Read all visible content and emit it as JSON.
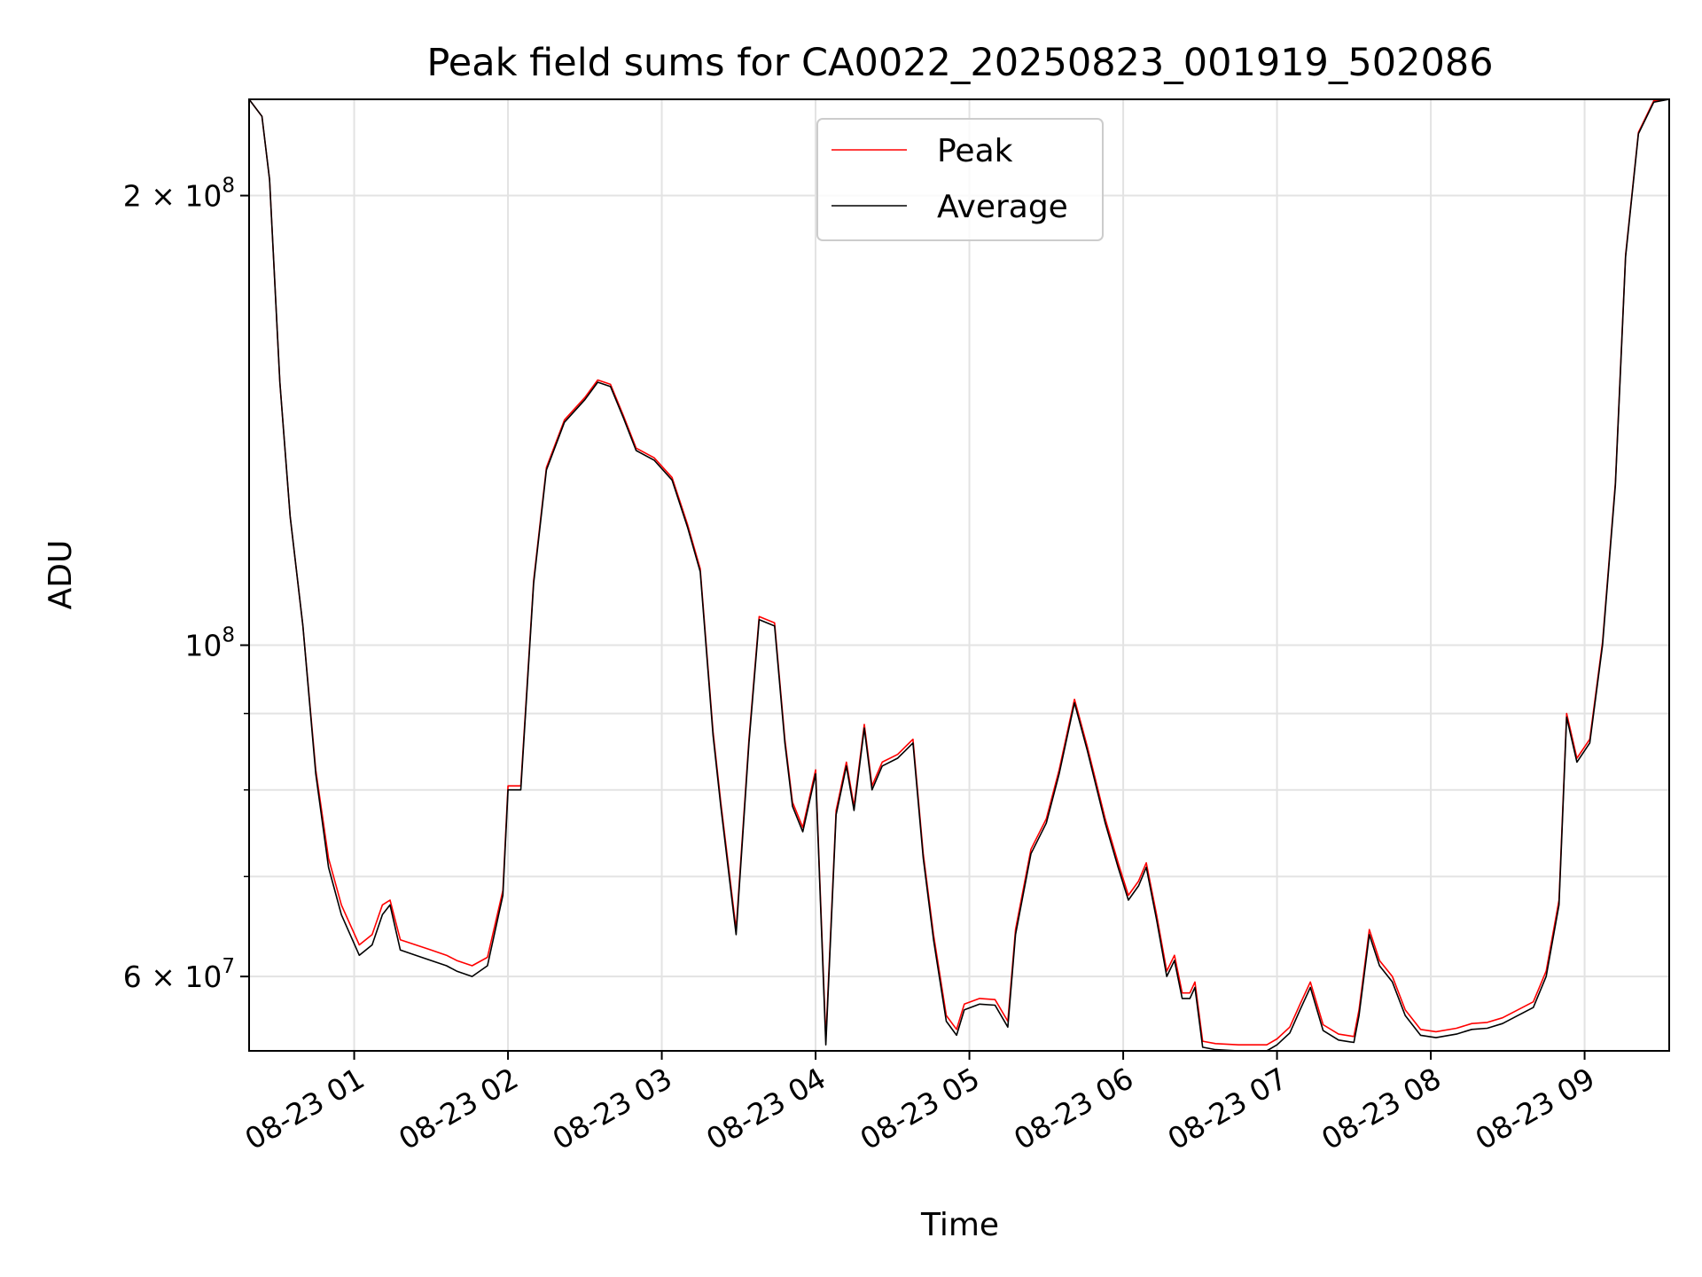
{
  "chart_data": {
    "type": "line",
    "title": "Peak field sums for CA0022_20250823_001919_502086",
    "xlabel": "Time",
    "ylabel": "ADU",
    "y_scale": "log",
    "xlim": [
      "2025-08-23 00:19",
      "2025-08-23 09:33"
    ],
    "ylim": [
      53500000,
      232000000
    ],
    "grid": true,
    "legend_position": "upper center",
    "x_ticks": [
      {
        "value": "2025-08-23 01:00",
        "label": "08-23 01"
      },
      {
        "value": "2025-08-23 02:00",
        "label": "08-23 02"
      },
      {
        "value": "2025-08-23 03:00",
        "label": "08-23 03"
      },
      {
        "value": "2025-08-23 04:00",
        "label": "08-23 04"
      },
      {
        "value": "2025-08-23 05:00",
        "label": "08-23 05"
      },
      {
        "value": "2025-08-23 06:00",
        "label": "08-23 06"
      },
      {
        "value": "2025-08-23 07:00",
        "label": "08-23 07"
      },
      {
        "value": "2025-08-23 08:00",
        "label": "08-23 08"
      },
      {
        "value": "2025-08-23 09:00",
        "label": "08-23 09"
      }
    ],
    "y_major_ticks": [
      {
        "value": 60000000,
        "base": "6 × 10",
        "exp": "7"
      },
      {
        "value": 100000000,
        "base": "10",
        "exp": "8"
      },
      {
        "value": 200000000,
        "base": "2 × 10",
        "exp": "8"
      }
    ],
    "y_minor_ticks": [
      70000000,
      80000000,
      90000000
    ],
    "series": [
      {
        "name": "Average",
        "color": "#000000",
        "x": [
          "2025-08-23 00:19",
          "2025-08-23 00:24",
          "2025-08-23 00:27",
          "2025-08-23 00:31",
          "2025-08-23 00:35",
          "2025-08-23 00:40",
          "2025-08-23 00:45",
          "2025-08-23 00:50",
          "2025-08-23 00:55",
          "2025-08-23 01:02",
          "2025-08-23 01:07",
          "2025-08-23 01:11",
          "2025-08-23 01:14",
          "2025-08-23 01:18",
          "2025-08-23 01:24",
          "2025-08-23 01:30",
          "2025-08-23 01:36",
          "2025-08-23 01:40",
          "2025-08-23 01:46",
          "2025-08-23 01:52",
          "2025-08-23 01:58",
          "2025-08-23 02:00",
          "2025-08-23 02:05",
          "2025-08-23 02:10",
          "2025-08-23 02:15",
          "2025-08-23 02:22",
          "2025-08-23 02:30",
          "2025-08-23 02:35",
          "2025-08-23 02:40",
          "2025-08-23 02:45",
          "2025-08-23 02:50",
          "2025-08-23 02:57",
          "2025-08-23 03:04",
          "2025-08-23 03:10",
          "2025-08-23 03:15",
          "2025-08-23 03:20",
          "2025-08-23 03:23",
          "2025-08-23 03:29",
          "2025-08-23 03:34",
          "2025-08-23 03:38",
          "2025-08-23 03:44",
          "2025-08-23 03:48",
          "2025-08-23 03:51",
          "2025-08-23 03:55",
          "2025-08-23 04:00",
          "2025-08-23 04:04",
          "2025-08-23 04:08",
          "2025-08-23 04:12",
          "2025-08-23 04:15",
          "2025-08-23 04:19",
          "2025-08-23 04:22",
          "2025-08-23 04:26",
          "2025-08-23 04:32",
          "2025-08-23 04:35",
          "2025-08-23 04:38",
          "2025-08-23 04:42",
          "2025-08-23 04:46",
          "2025-08-23 04:51",
          "2025-08-23 04:55",
          "2025-08-23 04:58",
          "2025-08-23 05:04",
          "2025-08-23 05:10",
          "2025-08-23 05:15",
          "2025-08-23 05:18",
          "2025-08-23 05:24",
          "2025-08-23 05:30",
          "2025-08-23 05:35",
          "2025-08-23 05:41",
          "2025-08-23 05:46",
          "2025-08-23 05:53",
          "2025-08-23 05:58",
          "2025-08-23 06:02",
          "2025-08-23 06:06",
          "2025-08-23 06:09",
          "2025-08-23 06:13",
          "2025-08-23 06:17",
          "2025-08-23 06:20",
          "2025-08-23 06:23",
          "2025-08-23 06:26",
          "2025-08-23 06:28",
          "2025-08-23 06:31",
          "2025-08-23 06:36",
          "2025-08-23 06:45",
          "2025-08-23 06:52",
          "2025-08-23 06:56",
          "2025-08-23 07:00",
          "2025-08-23 07:05",
          "2025-08-23 07:09",
          "2025-08-23 07:13",
          "2025-08-23 07:18",
          "2025-08-23 07:24",
          "2025-08-23 07:30",
          "2025-08-23 07:32",
          "2025-08-23 07:36",
          "2025-08-23 07:40",
          "2025-08-23 07:45",
          "2025-08-23 07:50",
          "2025-08-23 07:56",
          "2025-08-23 08:02",
          "2025-08-23 08:10",
          "2025-08-23 08:16",
          "2025-08-23 08:22",
          "2025-08-23 08:28",
          "2025-08-23 08:34",
          "2025-08-23 08:40",
          "2025-08-23 08:45",
          "2025-08-23 08:50",
          "2025-08-23 08:53",
          "2025-08-23 08:57",
          "2025-08-23 09:02",
          "2025-08-23 09:07",
          "2025-08-23 09:12",
          "2025-08-23 09:16",
          "2025-08-23 09:21",
          "2025-08-23 09:27",
          "2025-08-23 09:33"
        ],
        "values": [
          232000000,
          226000000,
          205000000,
          150000000,
          122000000,
          103000000,
          82000000,
          71000000,
          66000000,
          62000000,
          63000000,
          66000000,
          67000000,
          62500000,
          62000000,
          61500000,
          61000000,
          60500000,
          60000000,
          61000000,
          68000000,
          80000000,
          80000000,
          110000000,
          131000000,
          141000000,
          146000000,
          150000000,
          149000000,
          142000000,
          135000000,
          133000000,
          129000000,
          120000000,
          112000000,
          87000000,
          78000000,
          64000000,
          86000000,
          104000000,
          103000000,
          86000000,
          78000000,
          75000000,
          82000000,
          54000000,
          77000000,
          83000000,
          77500000,
          88000000,
          80000000,
          83000000,
          84000000,
          85000000,
          86000000,
          72000000,
          63500000,
          56000000,
          54800000,
          57000000,
          57500000,
          57400000,
          55500000,
          64000000,
          72500000,
          76000000,
          82000000,
          91500000,
          85000000,
          76000000,
          71000000,
          67500000,
          69000000,
          71000000,
          65500000,
          60000000,
          61500000,
          58000000,
          58000000,
          59000000,
          53800000,
          53600000,
          53500000,
          53500000,
          53500000,
          54000000,
          55000000,
          57000000,
          59000000,
          55200000,
          54400000,
          54200000,
          56500000,
          64000000,
          61000000,
          59500000,
          56500000,
          54800000,
          54600000,
          54900000,
          55300000,
          55400000,
          55800000,
          56500000,
          57200000,
          60000000,
          67000000,
          89500000,
          83500000,
          86000000,
          100000000,
          128000000,
          182000000,
          220000000,
          231000000,
          232000000
        ]
      },
      {
        "name": "Peak",
        "color": "#ff0000",
        "x": [
          "2025-08-23 00:19",
          "2025-08-23 00:24",
          "2025-08-23 00:27",
          "2025-08-23 00:31",
          "2025-08-23 00:35",
          "2025-08-23 00:40",
          "2025-08-23 00:45",
          "2025-08-23 00:50",
          "2025-08-23 00:55",
          "2025-08-23 01:02",
          "2025-08-23 01:07",
          "2025-08-23 01:11",
          "2025-08-23 01:14",
          "2025-08-23 01:18",
          "2025-08-23 01:24",
          "2025-08-23 01:30",
          "2025-08-23 01:36",
          "2025-08-23 01:40",
          "2025-08-23 01:46",
          "2025-08-23 01:52",
          "2025-08-23 01:58",
          "2025-08-23 02:00",
          "2025-08-23 02:05",
          "2025-08-23 02:10",
          "2025-08-23 02:15",
          "2025-08-23 02:22",
          "2025-08-23 02:30",
          "2025-08-23 02:35",
          "2025-08-23 02:40",
          "2025-08-23 02:45",
          "2025-08-23 02:50",
          "2025-08-23 02:57",
          "2025-08-23 03:04",
          "2025-08-23 03:10",
          "2025-08-23 03:15",
          "2025-08-23 03:20",
          "2025-08-23 03:23",
          "2025-08-23 03:29",
          "2025-08-23 03:34",
          "2025-08-23 03:38",
          "2025-08-23 03:44",
          "2025-08-23 03:48",
          "2025-08-23 03:51",
          "2025-08-23 03:55",
          "2025-08-23 04:00",
          "2025-08-23 04:04",
          "2025-08-23 04:08",
          "2025-08-23 04:12",
          "2025-08-23 04:15",
          "2025-08-23 04:19",
          "2025-08-23 04:22",
          "2025-08-23 04:26",
          "2025-08-23 04:32",
          "2025-08-23 04:35",
          "2025-08-23 04:38",
          "2025-08-23 04:42",
          "2025-08-23 04:46",
          "2025-08-23 04:51",
          "2025-08-23 04:55",
          "2025-08-23 04:58",
          "2025-08-23 05:04",
          "2025-08-23 05:10",
          "2025-08-23 05:15",
          "2025-08-23 05:18",
          "2025-08-23 05:24",
          "2025-08-23 05:30",
          "2025-08-23 05:35",
          "2025-08-23 05:41",
          "2025-08-23 05:46",
          "2025-08-23 05:53",
          "2025-08-23 05:58",
          "2025-08-23 06:02",
          "2025-08-23 06:06",
          "2025-08-23 06:09",
          "2025-08-23 06:13",
          "2025-08-23 06:17",
          "2025-08-23 06:20",
          "2025-08-23 06:23",
          "2025-08-23 06:26",
          "2025-08-23 06:28",
          "2025-08-23 06:31",
          "2025-08-23 06:36",
          "2025-08-23 06:45",
          "2025-08-23 06:52",
          "2025-08-23 06:56",
          "2025-08-23 07:00",
          "2025-08-23 07:05",
          "2025-08-23 07:09",
          "2025-08-23 07:13",
          "2025-08-23 07:18",
          "2025-08-23 07:24",
          "2025-08-23 07:30",
          "2025-08-23 07:32",
          "2025-08-23 07:36",
          "2025-08-23 07:40",
          "2025-08-23 07:45",
          "2025-08-23 07:50",
          "2025-08-23 07:56",
          "2025-08-23 08:02",
          "2025-08-23 08:10",
          "2025-08-23 08:16",
          "2025-08-23 08:22",
          "2025-08-23 08:28",
          "2025-08-23 08:34",
          "2025-08-23 08:40",
          "2025-08-23 08:45",
          "2025-08-23 08:50",
          "2025-08-23 08:53",
          "2025-08-23 08:57",
          "2025-08-23 09:02",
          "2025-08-23 09:07",
          "2025-08-23 09:12",
          "2025-08-23 09:16",
          "2025-08-23 09:21",
          "2025-08-23 09:27",
          "2025-08-23 09:33"
        ],
        "values": [
          232000000,
          226000000,
          205000000,
          150000000,
          122000000,
          103000000,
          82500000,
          72000000,
          67000000,
          63000000,
          64000000,
          67000000,
          67500000,
          63500000,
          63000000,
          62500000,
          62000000,
          61500000,
          61000000,
          61800000,
          68500000,
          80500000,
          80500000,
          110500000,
          131500000,
          141500000,
          146500000,
          150500000,
          149500000,
          142500000,
          135500000,
          133500000,
          129500000,
          120500000,
          112500000,
          87500000,
          78500000,
          64500000,
          86500000,
          104500000,
          103500000,
          86500000,
          78500000,
          75500000,
          82500000,
          54500000,
          77500000,
          83500000,
          78000000,
          88500000,
          80500000,
          83500000,
          84500000,
          85500000,
          86500000,
          72500000,
          64000000,
          56500000,
          55300000,
          57500000,
          58000000,
          57900000,
          56000000,
          64500000,
          73000000,
          76500000,
          82500000,
          92000000,
          85500000,
          76500000,
          71500000,
          68000000,
          69500000,
          71500000,
          66000000,
          60500000,
          62000000,
          58500000,
          58500000,
          59500000,
          54300000,
          54100000,
          54000000,
          54000000,
          54000000,
          54500000,
          55500000,
          57500000,
          59500000,
          55700000,
          54900000,
          54700000,
          57000000,
          64500000,
          61500000,
          60000000,
          57000000,
          55300000,
          55100000,
          55400000,
          55800000,
          55900000,
          56300000,
          57000000,
          57700000,
          60500000,
          67500000,
          90000000,
          84000000,
          86500000,
          100500000,
          128500000,
          182500000,
          220500000,
          231500000,
          232000000
        ]
      }
    ]
  },
  "legend": {
    "items": [
      {
        "label": "Peak",
        "color": "#ff0000"
      },
      {
        "label": "Average",
        "color": "#000000"
      }
    ]
  }
}
